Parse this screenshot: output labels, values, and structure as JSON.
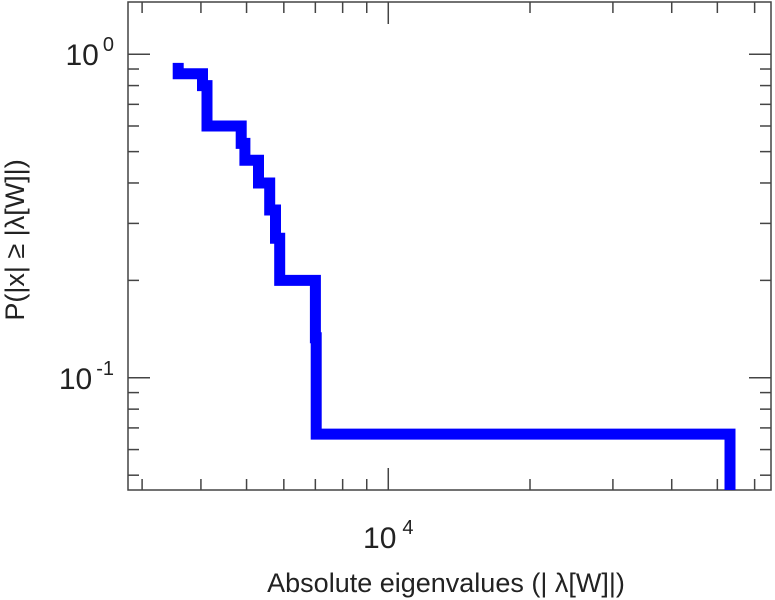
{
  "chart_data": {
    "type": "line",
    "step": true,
    "xscale": "log",
    "yscale": "log",
    "xlim": [
      2800,
      65000
    ],
    "ylim": [
      0.045,
      1.45
    ],
    "xlabel": "Absolute eigenvalues (|     λ[W]|)",
    "ylabel": "P(|x|  ≥ |λ[W]|)",
    "grid": false,
    "legend": null,
    "colors": {
      "series": "#0000ff",
      "axes": "#444444",
      "text": "#222222"
    },
    "x_tick_labels": [
      {
        "value": 10000,
        "base": "10",
        "exp": "4"
      }
    ],
    "y_tick_labels": [
      {
        "value": 1,
        "base": "10",
        "exp": "0"
      },
      {
        "value": 0.1,
        "base": "10",
        "exp": "-1"
      }
    ],
    "series": [
      {
        "values": [
          [
            3580,
            0.94
          ],
          [
            3580,
            0.87
          ],
          [
            4030,
            0.87
          ],
          [
            4030,
            0.8
          ],
          [
            4120,
            0.8
          ],
          [
            4120,
            0.6
          ],
          [
            4870,
            0.6
          ],
          [
            4870,
            0.53
          ],
          [
            4960,
            0.53
          ],
          [
            4960,
            0.47
          ],
          [
            5300,
            0.47
          ],
          [
            5300,
            0.4
          ],
          [
            5600,
            0.4
          ],
          [
            5600,
            0.33
          ],
          [
            5760,
            0.33
          ],
          [
            5760,
            0.27
          ],
          [
            5880,
            0.27
          ],
          [
            5880,
            0.2
          ],
          [
            7000,
            0.2
          ],
          [
            7000,
            0.133
          ],
          [
            7030,
            0.133
          ],
          [
            7030,
            0.067
          ],
          [
            53200,
            0.067
          ],
          [
            53200,
            0.045
          ]
        ]
      }
    ]
  }
}
